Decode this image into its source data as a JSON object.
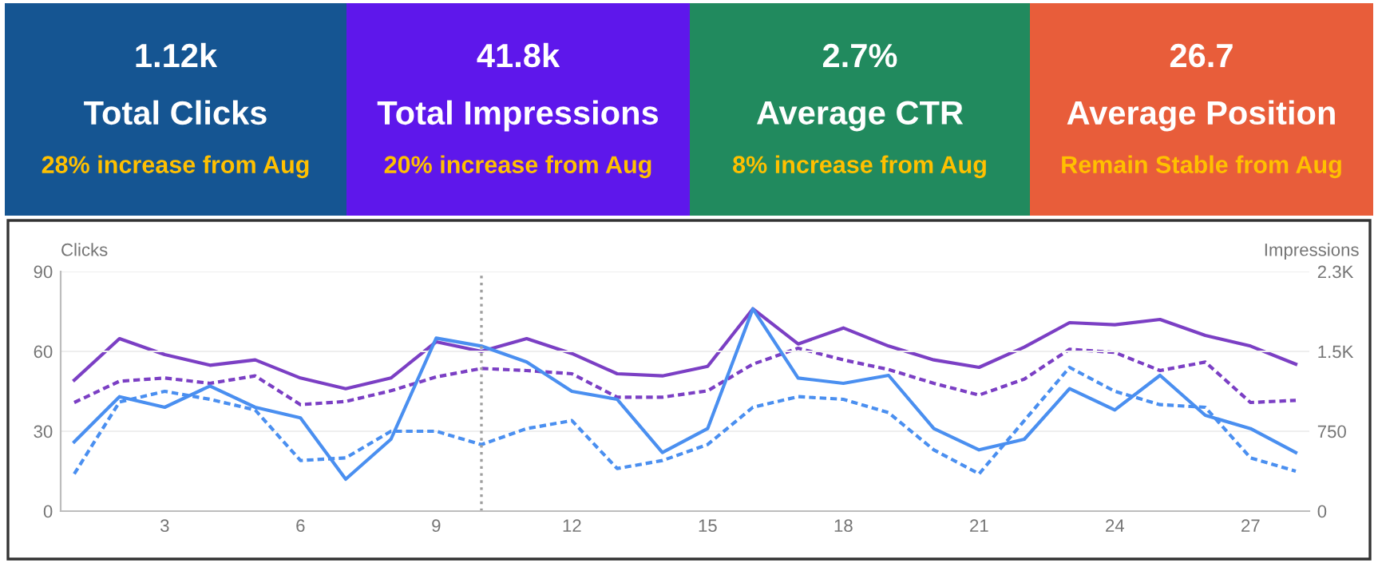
{
  "chart_data": [
    {
      "type": "other",
      "title": "1.12k",
      "subtitle": "Total Clicks",
      "annotations": [
        "28% increase from Aug"
      ],
      "color": "#155592"
    },
    {
      "type": "other",
      "title": "41.8k",
      "subtitle": "Total Impressions",
      "annotations": [
        "20% increase from Aug"
      ],
      "color": "#5e17eb"
    },
    {
      "type": "other",
      "title": "2.7%",
      "subtitle": "Average CTR",
      "annotations": [
        "8% increase from Aug"
      ],
      "color": "#218a5e"
    },
    {
      "type": "other",
      "title": "26.7",
      "subtitle": "Average Position",
      "annotations": [
        "Remain Stable from Aug"
      ],
      "color": "#e85d3a"
    },
    {
      "type": "line",
      "ylabel": "Clicks",
      "y2label": "Impressions",
      "x": [
        1,
        2,
        3,
        4,
        5,
        6,
        7,
        8,
        9,
        10,
        11,
        12,
        13,
        14,
        15,
        16,
        17,
        18,
        19,
        20,
        21,
        22,
        23,
        24,
        25,
        26,
        27,
        28
      ],
      "xlim": [
        0.7,
        28.3
      ],
      "xticks": [
        3,
        6,
        9,
        12,
        15,
        18,
        21,
        24,
        27
      ],
      "ylim": [
        0,
        90
      ],
      "yticks": [
        0,
        30,
        60,
        90
      ],
      "y2lim": [
        0,
        2250
      ],
      "y2ticks": [
        0,
        750,
        {
          "value": 1500,
          "label": "1.5K"
        },
        {
          "value": 2250,
          "label": "2.3K"
        }
      ],
      "grid": "y",
      "ref_lines": [
        {
          "axis": "x",
          "value": 10,
          "color": "#9e9e9e",
          "line_style": "dotted"
        }
      ],
      "series": [
        {
          "color": "#7b3fc4",
          "axis": "y2",
          "line_style": "solid",
          "values": [
            1230,
            1620,
            1470,
            1370,
            1420,
            1250,
            1150,
            1250,
            1590,
            1500,
            1620,
            1480,
            1290,
            1270,
            1360,
            1900,
            1570,
            1720,
            1550,
            1420,
            1350,
            1540,
            1770,
            1750,
            1800,
            1650,
            1550,
            1380
          ]
        },
        {
          "color": "#7b3fc4",
          "axis": "y2",
          "line_style": "dashed",
          "values": [
            1020,
            1220,
            1250,
            1200,
            1270,
            1000,
            1030,
            1130,
            1260,
            1340,
            1320,
            1290,
            1070,
            1070,
            1130,
            1380,
            1530,
            1420,
            1330,
            1200,
            1090,
            1240,
            1520,
            1490,
            1320,
            1400,
            1020,
            1040
          ]
        },
        {
          "color": "#4a8ff0",
          "axis": "y",
          "line_style": "solid",
          "values": [
            26,
            43,
            39,
            47,
            39,
            35,
            12,
            27,
            65,
            62,
            56,
            45,
            42,
            22,
            31,
            76,
            50,
            48,
            51,
            31,
            23,
            27,
            46,
            38,
            51,
            36,
            31,
            22
          ]
        },
        {
          "color": "#4a8ff0",
          "axis": "y",
          "line_style": "dashed",
          "values": [
            14,
            41,
            45,
            42,
            38,
            19,
            20,
            30,
            30,
            25,
            31,
            34,
            16,
            19,
            25,
            39,
            43,
            42,
            37,
            23,
            14,
            34,
            54,
            45,
            40,
            39,
            20,
            15
          ]
        }
      ]
    }
  ]
}
